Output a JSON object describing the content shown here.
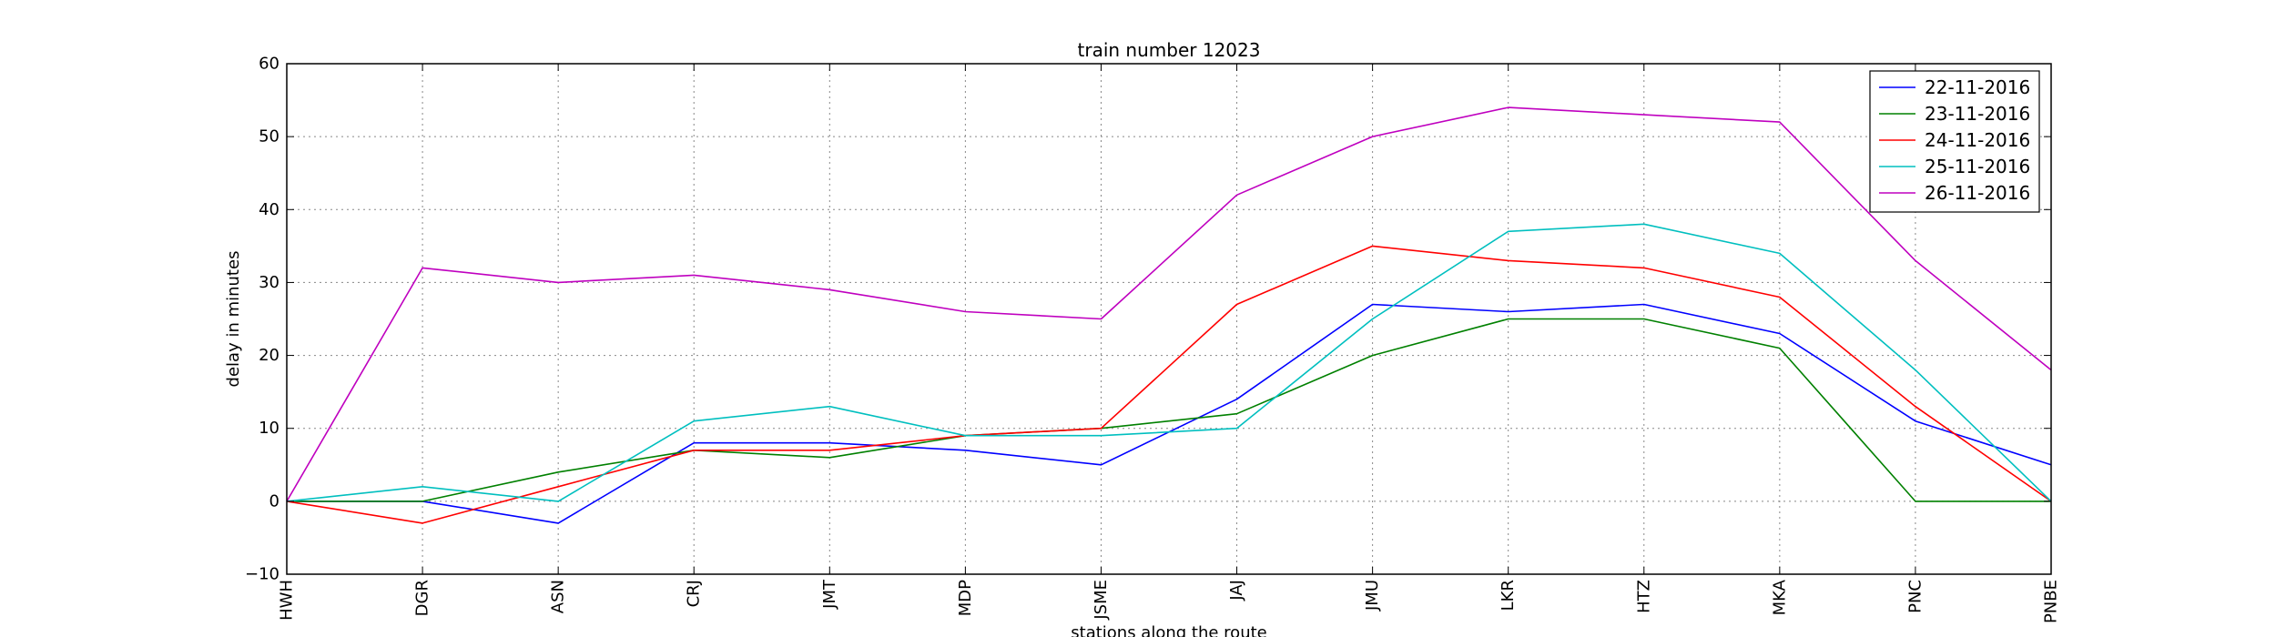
{
  "chart_data": {
    "type": "line",
    "title": "train number 12023",
    "xlabel": "stations along the route",
    "ylabel": "delay in minutes",
    "categories": [
      "HWH",
      "DGR",
      "ASN",
      "CRJ",
      "JMT",
      "MDP",
      "JSME",
      "JAJ",
      "JMU",
      "LKR",
      "HTZ",
      "MKA",
      "PNC",
      "PNBE"
    ],
    "ylim": [
      -10,
      60
    ],
    "yticks": [
      -10,
      0,
      10,
      20,
      30,
      40,
      50,
      60
    ],
    "grid": true,
    "legend_position": "top-right",
    "series": [
      {
        "name": "22-11-2016",
        "color": "#0000ff",
        "values": [
          0,
          0,
          -3,
          8,
          8,
          7,
          5,
          14,
          27,
          26,
          27,
          23,
          11,
          5
        ]
      },
      {
        "name": "23-11-2016",
        "color": "#008000",
        "values": [
          0,
          0,
          4,
          7,
          6,
          9,
          10,
          12,
          20,
          25,
          25,
          21,
          0,
          0
        ]
      },
      {
        "name": "24-11-2016",
        "color": "#ff0000",
        "values": [
          0,
          -3,
          2,
          7,
          7,
          9,
          10,
          27,
          35,
          33,
          32,
          28,
          13,
          0
        ]
      },
      {
        "name": "25-11-2016",
        "color": "#00bfbf",
        "values": [
          0,
          2,
          0,
          11,
          13,
          9,
          9,
          10,
          25,
          37,
          38,
          34,
          18,
          0
        ]
      },
      {
        "name": "26-11-2016",
        "color": "#bf00bf",
        "values": [
          0,
          32,
          30,
          31,
          29,
          26,
          25,
          42,
          50,
          54,
          53,
          52,
          33,
          18
        ]
      }
    ]
  }
}
